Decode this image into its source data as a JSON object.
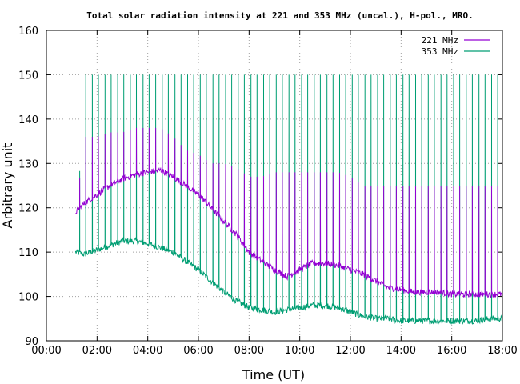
{
  "chart_data": {
    "type": "line",
    "title": "Total solar radiation intensity at 221 and 353 MHz (uncal.), H-pol., MRO.",
    "xlabel": "Time (UT)",
    "ylabel": "Arbitrary unit",
    "xlim": [
      "00:00",
      "18:00"
    ],
    "ylim": [
      90,
      160
    ],
    "x_ticks": [
      "00:00",
      "02:00",
      "04:00",
      "06:00",
      "08:00",
      "10:00",
      "12:00",
      "14:00",
      "16:00",
      "18:00"
    ],
    "y_ticks": [
      "90",
      "100",
      "110",
      "120",
      "130",
      "140",
      "150",
      "160"
    ],
    "grid": true,
    "legend_position": "top-right",
    "series": [
      {
        "name": "221 MHz",
        "color": "#9400d3",
        "x_hours": [
          1.15,
          1.5,
          2.0,
          2.5,
          3.0,
          3.5,
          4.0,
          4.5,
          5.0,
          5.5,
          6.0,
          6.5,
          7.0,
          7.5,
          8.0,
          8.5,
          9.0,
          9.5,
          10.0,
          10.5,
          11.0,
          11.5,
          12.0,
          12.5,
          13.0,
          13.5,
          14.0,
          14.5,
          15.0,
          15.5,
          16.0,
          16.5,
          17.0,
          17.5,
          18.0
        ],
        "baseline": [
          119,
          121,
          123,
          125,
          126.5,
          127.5,
          128,
          128.5,
          127,
          125,
          123,
          120,
          117,
          114,
          110,
          108,
          106,
          104.5,
          106,
          107.5,
          107.5,
          107,
          106,
          105,
          103.5,
          102,
          101.5,
          101,
          101,
          101,
          100.5,
          100.5,
          100.5,
          100.5,
          100.5
        ],
        "spike_peak": [
          119,
          136,
          136,
          137,
          137,
          138,
          138,
          138,
          136,
          133,
          132,
          130,
          130,
          129,
          127,
          127,
          128,
          128,
          128,
          128,
          128,
          128,
          127,
          125,
          125,
          125,
          125,
          125,
          125,
          125,
          125,
          125,
          125,
          125,
          125
        ]
      },
      {
        "name": "353 MHz",
        "color": "#009e73",
        "x_hours": [
          1.15,
          1.5,
          2.0,
          2.5,
          3.0,
          3.5,
          4.0,
          4.5,
          5.0,
          5.5,
          6.0,
          6.5,
          7.0,
          7.5,
          8.0,
          8.5,
          9.0,
          9.5,
          10.0,
          10.5,
          11.0,
          11.5,
          12.0,
          12.5,
          13.0,
          13.5,
          14.0,
          14.5,
          15.0,
          15.5,
          16.0,
          16.5,
          17.0,
          17.5,
          18.0
        ],
        "baseline": [
          110,
          109.5,
          110.5,
          111.5,
          112.5,
          112.5,
          112,
          111,
          110,
          108,
          106,
          103.5,
          101,
          99,
          97.5,
          97,
          96.5,
          97,
          97.5,
          98,
          98,
          97.5,
          96.5,
          95.5,
          95,
          95,
          94.5,
          94.5,
          94.5,
          94.5,
          94.5,
          94.5,
          94.5,
          95,
          95
        ],
        "spike_peak": [
          110,
          150,
          150,
          150,
          150,
          150,
          150,
          150,
          150,
          150,
          150,
          150,
          150,
          150,
          150,
          150,
          150,
          150,
          150,
          150,
          150,
          150,
          150,
          150,
          150,
          150,
          150,
          150,
          150,
          150,
          150,
          150,
          150,
          150,
          150
        ],
        "spike_interval_hours": 0.25,
        "spike_start_hours": 1.3
      }
    ]
  }
}
